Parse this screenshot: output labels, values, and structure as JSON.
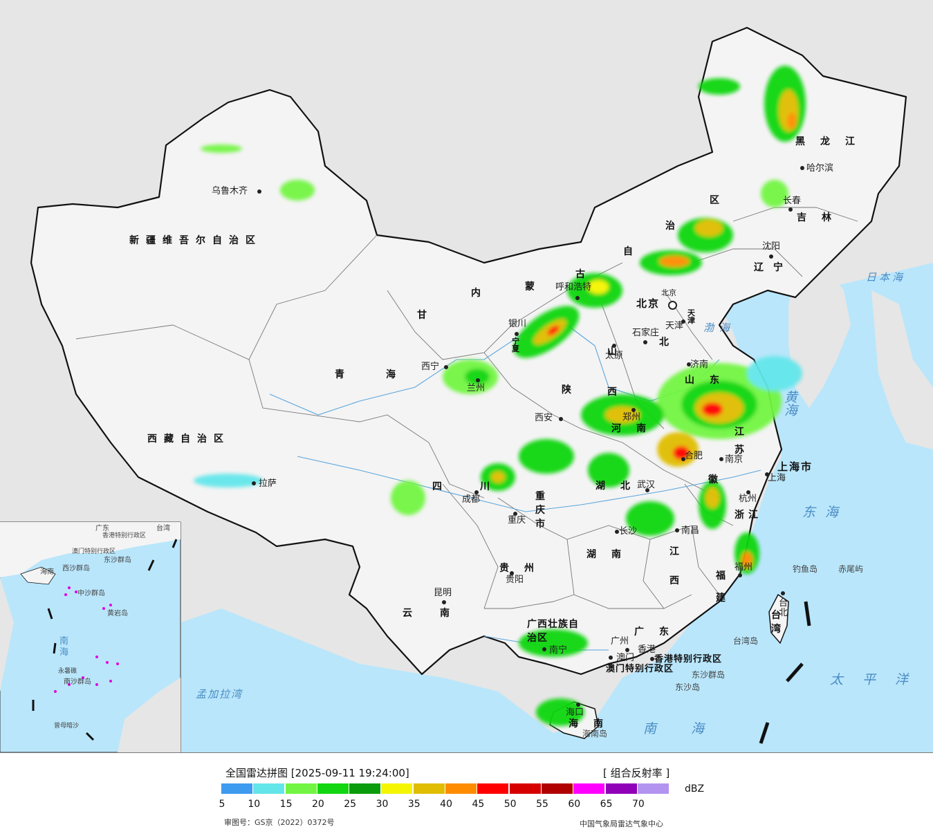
{
  "legend": {
    "title": "全国雷达拼图 [2025-09-11 19:24:00]",
    "product": "[ 组合反射率 ]",
    "unit": "dBZ",
    "ticks": [
      "5",
      "10",
      "15",
      "20",
      "25",
      "30",
      "35",
      "40",
      "45",
      "50",
      "55",
      "60",
      "65",
      "70"
    ],
    "colors": [
      "#3d9bf0",
      "#63e6ea",
      "#72f542",
      "#11d611",
      "#0a9c0a",
      "#f5f500",
      "#e0bd00",
      "#ff8c00",
      "#ff0000",
      "#d60000",
      "#b00000",
      "#ff00ff",
      "#9000b8",
      "#b294f0"
    ],
    "approval": "审图号：GS京（2022）0372号",
    "source": "中国气象局雷达气象中心"
  },
  "map": {
    "colors": {
      "ocean": "#b9e6fb",
      "land": "#f4f4f4",
      "foreign": "#e6e6e6",
      "border": "#111111",
      "river": "#5aa5dc"
    },
    "provinces": [
      {
        "id": "xinjiang",
        "text": "新疆维吾尔自治区"
      },
      {
        "id": "xizang",
        "text": "西藏自治区"
      },
      {
        "id": "qinghai",
        "text": "青海"
      },
      {
        "id": "gansu",
        "text": "甘"
      },
      {
        "id": "neimenggu-1",
        "text": "内"
      },
      {
        "id": "neimenggu-2",
        "text": "蒙"
      },
      {
        "id": "neimenggu-3",
        "text": "古"
      },
      {
        "id": "neimenggu-4",
        "text": "自"
      },
      {
        "id": "neimenggu-5",
        "text": "治"
      },
      {
        "id": "neimenggu-6",
        "text": "区"
      },
      {
        "id": "heilongjiang",
        "text": "黑龙江"
      },
      {
        "id": "jilin",
        "text": "吉林"
      },
      {
        "id": "liaoning",
        "text": "辽宁"
      },
      {
        "id": "beijing",
        "text": "北京"
      },
      {
        "id": "tianjin",
        "text": "天津"
      },
      {
        "id": "hebei",
        "text": "北"
      },
      {
        "id": "shanxi",
        "text": "山西"
      },
      {
        "id": "shandong",
        "text": "山东"
      },
      {
        "id": "shaanxi",
        "text": "陕"
      },
      {
        "id": "ningxia",
        "text": "宁夏"
      },
      {
        "id": "henan",
        "text": "河南"
      },
      {
        "id": "jiangsu",
        "text": "江苏"
      },
      {
        "id": "anhui",
        "text": "徽"
      },
      {
        "id": "shanghai",
        "text": "上海市"
      },
      {
        "id": "hubei",
        "text": "湖北"
      },
      {
        "id": "sichuan",
        "text": "四川"
      },
      {
        "id": "chongqing",
        "text": "重庆市"
      },
      {
        "id": "zhejiang",
        "text": "浙江"
      },
      {
        "id": "jiangxi",
        "text": "江西"
      },
      {
        "id": "hunan",
        "text": "湖南"
      },
      {
        "id": "guizhou",
        "text": "贵州"
      },
      {
        "id": "fujian",
        "text": "福建"
      },
      {
        "id": "yunnan",
        "text": "云南"
      },
      {
        "id": "guangxi",
        "text": "广西壮族自治区"
      },
      {
        "id": "guangdong",
        "text": "广东"
      },
      {
        "id": "taiwan",
        "text": "台湾"
      },
      {
        "id": "hainan",
        "text": "海南"
      },
      {
        "id": "hongkong",
        "text": "香港特别行政区"
      },
      {
        "id": "macau",
        "text": "澳门特别行政区"
      }
    ],
    "cities": [
      {
        "id": "urumqi",
        "text": "乌鲁木齐"
      },
      {
        "id": "lhasa",
        "text": "拉萨"
      },
      {
        "id": "xining",
        "text": "西宁"
      },
      {
        "id": "lanzhou",
        "text": "兰州"
      },
      {
        "id": "yinchuan",
        "text": "银川"
      },
      {
        "id": "hohhot",
        "text": "呼和浩特"
      },
      {
        "id": "beijing-city",
        "text": "北京"
      },
      {
        "id": "tianjin-city",
        "text": "天津"
      },
      {
        "id": "shijiazhuang",
        "text": "石家庄"
      },
      {
        "id": "taiyuan",
        "text": "太原"
      },
      {
        "id": "xian",
        "text": "西安"
      },
      {
        "id": "zhengzhou",
        "text": "郑州"
      },
      {
        "id": "jinan",
        "text": "济南"
      },
      {
        "id": "shenyang",
        "text": "沈阳"
      },
      {
        "id": "changchun",
        "text": "长春"
      },
      {
        "id": "harbin",
        "text": "哈尔滨"
      },
      {
        "id": "nanjing",
        "text": "南京"
      },
      {
        "id": "hefei",
        "text": "合肥"
      },
      {
        "id": "shanghai-city",
        "text": "上海"
      },
      {
        "id": "hangzhou",
        "text": "杭州"
      },
      {
        "id": "wuhan",
        "text": "武汉"
      },
      {
        "id": "changsha",
        "text": "长沙"
      },
      {
        "id": "nanchang",
        "text": "南昌"
      },
      {
        "id": "fuzhou",
        "text": "福州"
      },
      {
        "id": "chengdu",
        "text": "成都"
      },
      {
        "id": "chongqing-city",
        "text": "重庆"
      },
      {
        "id": "guiyang",
        "text": "贵阳"
      },
      {
        "id": "kunming",
        "text": "昆明"
      },
      {
        "id": "nanning",
        "text": "南宁"
      },
      {
        "id": "guangzhou",
        "text": "广州"
      },
      {
        "id": "hongkong-city",
        "text": "香港"
      },
      {
        "id": "macau-city",
        "text": "澳门"
      },
      {
        "id": "haikou",
        "text": "海口"
      },
      {
        "id": "taipei",
        "text": "台北"
      }
    ],
    "seas": [
      {
        "id": "bohai",
        "text": "渤海"
      },
      {
        "id": "huanghai",
        "text": "黄海"
      },
      {
        "id": "donghai",
        "text": "东海"
      },
      {
        "id": "nanhai",
        "text": "南海"
      },
      {
        "id": "japan-sea",
        "text": "日本海"
      },
      {
        "id": "pacific",
        "text": "太平洋"
      },
      {
        "id": "bengal",
        "text": "孟加拉湾"
      }
    ],
    "islands": [
      {
        "id": "diaoyu",
        "text": "钓鱼岛"
      },
      {
        "id": "chiwei",
        "text": "赤尾屿"
      },
      {
        "id": "taiwan-island",
        "text": "台湾岛"
      },
      {
        "id": "hainan-island",
        "text": "海南岛"
      },
      {
        "id": "dongsha-qundao",
        "text": "东沙群岛"
      },
      {
        "id": "dongsha-dao",
        "text": "东沙岛"
      }
    ],
    "inset": {
      "labels": [
        {
          "id": "inset-nanhai",
          "text": "南海"
        },
        {
          "id": "inset-xisha",
          "text": "西沙群岛"
        },
        {
          "id": "inset-zhongsha",
          "text": "中沙群岛"
        },
        {
          "id": "inset-huangyan",
          "text": "黄岩岛"
        },
        {
          "id": "inset-nansha",
          "text": "南沙群岛"
        },
        {
          "id": "inset-dongsha",
          "text": "东沙群岛"
        },
        {
          "id": "inset-yongshu",
          "text": "永暑礁"
        },
        {
          "id": "inset-zengmu",
          "text": "曾母暗沙"
        },
        {
          "id": "inset-hainan",
          "text": "海南"
        },
        {
          "id": "inset-taiwan",
          "text": "台湾"
        },
        {
          "id": "inset-guangdong",
          "text": "广东"
        },
        {
          "id": "inset-hk",
          "text": "香港特别行政区"
        },
        {
          "id": "inset-macau",
          "text": "澳门特别行政区"
        }
      ]
    }
  }
}
